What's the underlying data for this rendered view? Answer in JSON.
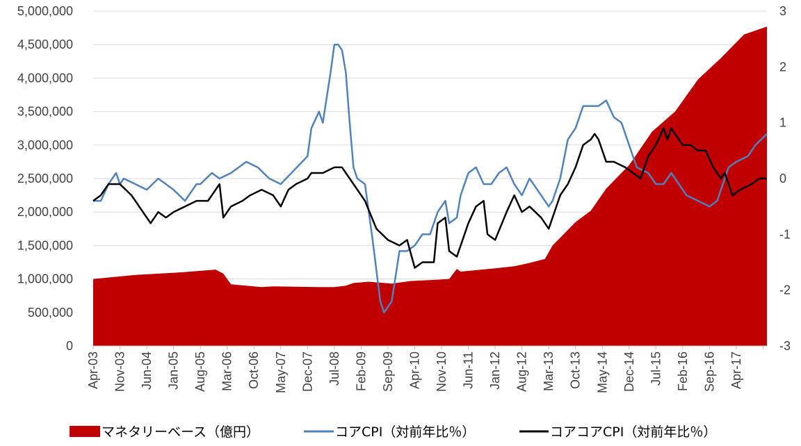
{
  "chart_data": {
    "type": "line",
    "title": "",
    "xlabel": "",
    "ylabel": "",
    "ylim_left": [
      0,
      5000000
    ],
    "ylim_right": [
      -3,
      3
    ],
    "y_left_ticks": [
      "0",
      "500,000",
      "1,000,000",
      "1,500,000",
      "2,000,000",
      "2,500,000",
      "3,000,000",
      "3,500,000",
      "4,000,000",
      "4,500,000",
      "5,000,000"
    ],
    "y_right_ticks": [
      "-3",
      "-2",
      "-1",
      "0",
      "1",
      "2",
      "3"
    ],
    "x_tick_labels": [
      "Apr-03",
      "Nov-03",
      "Jun-04",
      "Jan-05",
      "Aug-05",
      "Mar-06",
      "Oct-06",
      "May-07",
      "Dec-07",
      "Jul-08",
      "Feb-09",
      "Sep-09",
      "Apr-10",
      "Nov-10",
      "Jun-11",
      "Jan-12",
      "Aug-12",
      "Mar-13",
      "Oct-13",
      "May-14",
      "Dec-14",
      "Jul-15",
      "Feb-16",
      "Sep-16",
      "Apr-17"
    ],
    "x_range": [
      "Apr-03",
      "Dec-17"
    ],
    "grid": "horizontal",
    "legend_position": "bottom",
    "series": [
      {
        "name": "マネタリーベース（億円）",
        "type": "area",
        "axis": "left",
        "color": "#C00000",
        "points": [
          [
            "Apr-03",
            1000000
          ],
          [
            "Mar-04",
            1060000
          ],
          [
            "Mar-05",
            1100000
          ],
          [
            "Dec-05",
            1140000
          ],
          [
            "Feb-06",
            1080000
          ],
          [
            "Apr-06",
            920000
          ],
          [
            "Dec-06",
            880000
          ],
          [
            "Mar-07",
            890000
          ],
          [
            "Mar-08",
            880000
          ],
          [
            "Jul-08",
            880000
          ],
          [
            "Oct-08",
            900000
          ],
          [
            "Dec-08",
            940000
          ],
          [
            "Apr-09",
            960000
          ],
          [
            "Oct-09",
            930000
          ],
          [
            "Mar-10",
            970000
          ],
          [
            "Oct-10",
            990000
          ],
          [
            "Jan-11",
            1000000
          ],
          [
            "Mar-11",
            1150000
          ],
          [
            "Apr-11",
            1110000
          ],
          [
            "Jan-12",
            1160000
          ],
          [
            "Jun-12",
            1190000
          ],
          [
            "Oct-12",
            1240000
          ],
          [
            "Feb-13",
            1300000
          ],
          [
            "Apr-13",
            1500000
          ],
          [
            "Oct-13",
            1850000
          ],
          [
            "Feb-14",
            2020000
          ],
          [
            "Jun-14",
            2350000
          ],
          [
            "Dec-14",
            2700000
          ],
          [
            "Jun-15",
            3200000
          ],
          [
            "Dec-15",
            3500000
          ],
          [
            "Jun-16",
            3980000
          ],
          [
            "Dec-16",
            4300000
          ],
          [
            "Jun-17",
            4650000
          ],
          [
            "Dec-17",
            4770000
          ]
        ]
      },
      {
        "name": "コアCPI（対前年比％）",
        "type": "line",
        "axis": "right",
        "color": "#4F81BD",
        "points": [
          [
            "Apr-03",
            -0.4
          ],
          [
            "Jun-03",
            -0.4
          ],
          [
            "Aug-03",
            -0.1
          ],
          [
            "Oct-03",
            0.1
          ],
          [
            "Nov-03",
            -0.1
          ],
          [
            "Dec-03",
            0.0
          ],
          [
            "Mar-04",
            -0.1
          ],
          [
            "Jun-04",
            -0.2
          ],
          [
            "Sep-04",
            0.0
          ],
          [
            "Jan-05",
            -0.2
          ],
          [
            "Apr-05",
            -0.4
          ],
          [
            "Jul-05",
            -0.1
          ],
          [
            "Aug-05",
            -0.1
          ],
          [
            "Nov-05",
            0.1
          ],
          [
            "Jan-06",
            0.0
          ],
          [
            "Apr-06",
            0.1
          ],
          [
            "Aug-06",
            0.3
          ],
          [
            "Nov-06",
            0.2
          ],
          [
            "Feb-07",
            0.0
          ],
          [
            "May-07",
            -0.1
          ],
          [
            "Dec-07",
            0.4
          ],
          [
            "Jan-08",
            0.9
          ],
          [
            "Mar-08",
            1.2
          ],
          [
            "Apr-08",
            1.0
          ],
          [
            "Jun-08",
            1.9
          ],
          [
            "Jul-08",
            2.4
          ],
          [
            "Aug-08",
            2.4
          ],
          [
            "Sep-08",
            2.3
          ],
          [
            "Oct-08",
            1.9
          ],
          [
            "Nov-08",
            1.0
          ],
          [
            "Dec-08",
            0.2
          ],
          [
            "Jan-09",
            0.0
          ],
          [
            "Mar-09",
            -0.1
          ],
          [
            "May-09",
            -1.1
          ],
          [
            "Jul-09",
            -2.2
          ],
          [
            "Aug-09",
            -2.4
          ],
          [
            "Oct-09",
            -2.2
          ],
          [
            "Dec-09",
            -1.3
          ],
          [
            "Feb-10",
            -1.3
          ],
          [
            "Apr-10",
            -1.2
          ],
          [
            "Jun-10",
            -1.0
          ],
          [
            "Aug-10",
            -1.0
          ],
          [
            "Oct-10",
            -0.6
          ],
          [
            "Dec-10",
            -0.4
          ],
          [
            "Jan-11",
            -0.8
          ],
          [
            "Mar-11",
            -0.7
          ],
          [
            "Apr-11",
            -0.3
          ],
          [
            "Jun-11",
            0.1
          ],
          [
            "Aug-11",
            0.2
          ],
          [
            "Oct-11",
            -0.1
          ],
          [
            "Dec-11",
            -0.1
          ],
          [
            "Feb-12",
            0.1
          ],
          [
            "Apr-12",
            0.2
          ],
          [
            "Jun-12",
            -0.1
          ],
          [
            "Aug-12",
            -0.3
          ],
          [
            "Oct-12",
            0.0
          ],
          [
            "Jan-13",
            -0.3
          ],
          [
            "Mar-13",
            -0.5
          ],
          [
            "Apr-13",
            -0.4
          ],
          [
            "Jun-13",
            0.0
          ],
          [
            "Aug-13",
            0.7
          ],
          [
            "Sep-13",
            0.8
          ],
          [
            "Oct-13",
            0.9
          ],
          [
            "Dec-13",
            1.3
          ],
          [
            "Mar-14",
            1.3
          ],
          [
            "Apr-14",
            1.3
          ],
          [
            "Jun-14",
            1.4
          ],
          [
            "Aug-14",
            1.1
          ],
          [
            "Oct-14",
            1.0
          ],
          [
            "Dec-14",
            0.6
          ],
          [
            "Feb-15",
            0.2
          ],
          [
            "May-15",
            0.1
          ],
          [
            "Jul-15",
            -0.1
          ],
          [
            "Sep-15",
            -0.1
          ],
          [
            "Nov-15",
            0.1
          ],
          [
            "Jan-16",
            -0.1
          ],
          [
            "Mar-16",
            -0.3
          ],
          [
            "Jun-16",
            -0.4
          ],
          [
            "Sep-16",
            -0.5
          ],
          [
            "Nov-16",
            -0.4
          ],
          [
            "Feb-17",
            0.2
          ],
          [
            "Apr-17",
            0.3
          ],
          [
            "Jul-17",
            0.4
          ],
          [
            "Sep-17",
            0.6
          ],
          [
            "Dec-17",
            0.8
          ]
        ]
      },
      {
        "name": "コアコアCPI（対前年比％）",
        "type": "line",
        "axis": "right",
        "color": "#000000",
        "points": [
          [
            "Apr-03",
            -0.4
          ],
          [
            "Jun-03",
            -0.3
          ],
          [
            "Aug-03",
            -0.1
          ],
          [
            "Nov-03",
            -0.1
          ],
          [
            "Feb-04",
            -0.3
          ],
          [
            "May-04",
            -0.6
          ],
          [
            "Jul-04",
            -0.8
          ],
          [
            "Sep-04",
            -0.6
          ],
          [
            "Nov-04",
            -0.7
          ],
          [
            "Jan-05",
            -0.6
          ],
          [
            "Apr-05",
            -0.5
          ],
          [
            "Jul-05",
            -0.4
          ],
          [
            "Oct-05",
            -0.4
          ],
          [
            "Jan-06",
            -0.1
          ],
          [
            "Feb-06",
            -0.7
          ],
          [
            "Apr-06",
            -0.5
          ],
          [
            "Jul-06",
            -0.4
          ],
          [
            "Sep-06",
            -0.3
          ],
          [
            "Dec-06",
            -0.2
          ],
          [
            "Mar-07",
            -0.3
          ],
          [
            "May-07",
            -0.5
          ],
          [
            "Jul-07",
            -0.2
          ],
          [
            "Sep-07",
            -0.1
          ],
          [
            "Dec-07",
            0.0
          ],
          [
            "Jan-08",
            0.1
          ],
          [
            "Apr-08",
            0.1
          ],
          [
            "Jul-08",
            0.2
          ],
          [
            "Sep-08",
            0.2
          ],
          [
            "Dec-08",
            -0.1
          ],
          [
            "Mar-09",
            -0.4
          ],
          [
            "Jun-09",
            -0.9
          ],
          [
            "Sep-09",
            -1.1
          ],
          [
            "Dec-09",
            -1.2
          ],
          [
            "Feb-10",
            -1.1
          ],
          [
            "Apr-10",
            -1.6
          ],
          [
            "Jun-10",
            -1.5
          ],
          [
            "Sep-10",
            -1.5
          ],
          [
            "Oct-10",
            -0.8
          ],
          [
            "Dec-10",
            -0.7
          ],
          [
            "Jan-11",
            -1.3
          ],
          [
            "Mar-11",
            -1.4
          ],
          [
            "Jun-11",
            -0.8
          ],
          [
            "Aug-11",
            -0.5
          ],
          [
            "Oct-11",
            -0.4
          ],
          [
            "Nov-11",
            -1.0
          ],
          [
            "Jan-12",
            -1.1
          ],
          [
            "Apr-12",
            -0.6
          ],
          [
            "Jun-12",
            -0.3
          ],
          [
            "Aug-12",
            -0.6
          ],
          [
            "Oct-12",
            -0.5
          ],
          [
            "Jan-13",
            -0.7
          ],
          [
            "Mar-13",
            -0.9
          ],
          [
            "Jun-13",
            -0.3
          ],
          [
            "Aug-13",
            -0.1
          ],
          [
            "Oct-13",
            0.2
          ],
          [
            "Dec-13",
            0.6
          ],
          [
            "Feb-14",
            0.7
          ],
          [
            "Mar-14",
            0.8
          ],
          [
            "Apr-14",
            0.7
          ],
          [
            "Jun-14",
            0.3
          ],
          [
            "Aug-14",
            0.3
          ],
          [
            "Nov-14",
            0.2
          ],
          [
            "Jan-15",
            0.1
          ],
          [
            "Mar-15",
            0.0
          ],
          [
            "May-15",
            0.4
          ],
          [
            "Jul-15",
            0.6
          ],
          [
            "Sep-15",
            0.9
          ],
          [
            "Oct-15",
            0.7
          ],
          [
            "Nov-15",
            0.9
          ],
          [
            "Dec-15",
            0.8
          ],
          [
            "Feb-16",
            0.6
          ],
          [
            "Apr-16",
            0.6
          ],
          [
            "Jun-16",
            0.5
          ],
          [
            "Aug-16",
            0.5
          ],
          [
            "Oct-16",
            0.2
          ],
          [
            "Dec-16",
            0.0
          ],
          [
            "Jan-17",
            0.1
          ],
          [
            "Mar-17",
            -0.3
          ],
          [
            "May-17",
            -0.2
          ],
          [
            "Aug-17",
            -0.1
          ],
          [
            "Oct-17",
            0.0
          ],
          [
            "Dec-17",
            0.0
          ]
        ]
      }
    ]
  }
}
